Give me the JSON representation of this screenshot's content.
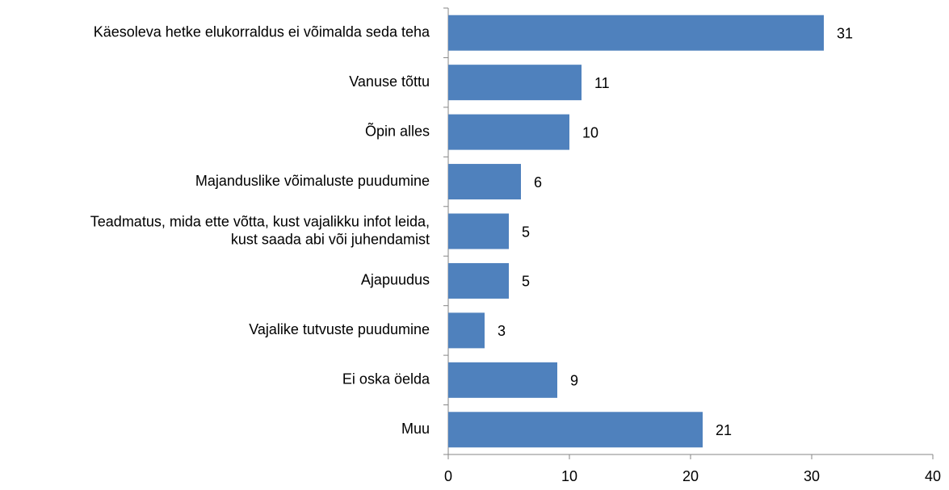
{
  "chart_data": {
    "type": "barh",
    "categories": [
      "Käesoleva hetke elukorraldus ei võimalda seda teha",
      "Vanuse tõttu",
      "Õpin alles",
      "Majanduslike võimaluste puudumine",
      "Teadmatus, mida ette võtta, kust vajalikku infot leida,\nkust saada abi või juhendamist",
      "Ajapuudus",
      "Vajalike tutvuste puudumine",
      "Ei oska öelda",
      "Muu"
    ],
    "values": [
      31,
      11,
      10,
      6,
      5,
      5,
      3,
      9,
      21
    ],
    "color": "#4f81bd",
    "xlim": [
      0,
      40
    ],
    "xticks": [
      0,
      10,
      20,
      30,
      40
    ],
    "grid": false
  }
}
